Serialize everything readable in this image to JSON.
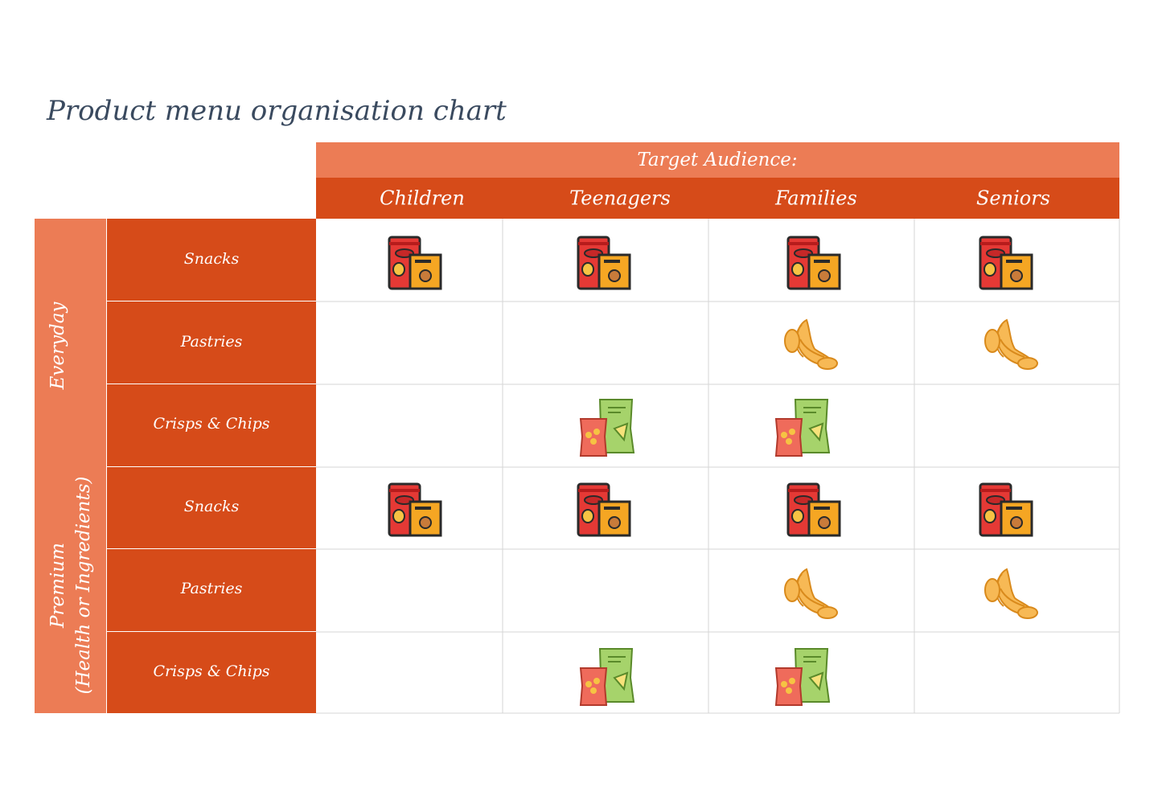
{
  "title": "Product menu organisation chart",
  "header": {
    "label": "Target Audience:",
    "audiences": [
      "Children",
      "Teenagers",
      "Families",
      "Seniors"
    ]
  },
  "groups": [
    {
      "label": [
        "Everyday"
      ],
      "rows": [
        "Snacks",
        "Pastries",
        "Crisps & Chips"
      ]
    },
    {
      "label": [
        "Premium",
        "(Health or Ingredients)"
      ],
      "rows": [
        "Snacks",
        "Pastries",
        "Crisps & Chips"
      ]
    }
  ]
}
